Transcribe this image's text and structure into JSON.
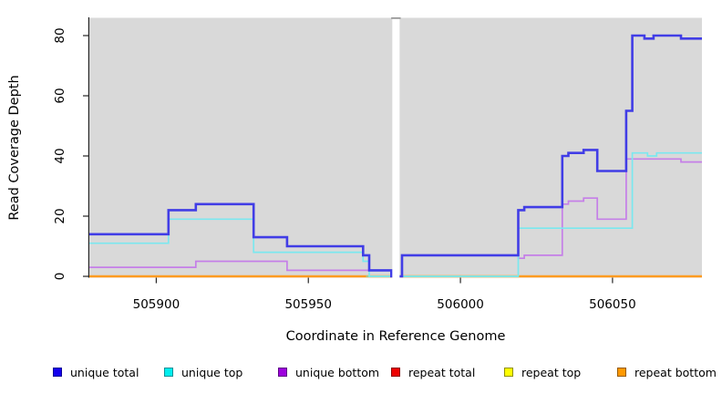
{
  "figure": {
    "x_axis_label": "Coordinate in Reference Genome",
    "y_axis_label": "Read Coverage Depth"
  },
  "chart_data": {
    "type": "line",
    "subtype": "step-coverage",
    "title": "",
    "xlabel": "Coordinate in Reference Genome",
    "ylabel": "Read Coverage Depth",
    "xlim": [
      505878,
      506079.4
    ],
    "ylim": [
      0,
      86
    ],
    "x_ticks": [
      505900,
      505950,
      506000,
      506050
    ],
    "y_ticks": [
      0,
      20,
      40,
      60,
      80
    ],
    "grid": false,
    "plot_bg_color": "#d9d9d9",
    "axis_color": "#262626",
    "masked_region": {
      "from": 505977.6,
      "to": 505980.0,
      "color": "#ffffff",
      "cap_color": "#9a9a9a"
    },
    "zero_overlap_color_note": "pale green along y=0 where unique top overlaps repeat lines at zero",
    "series": [
      {
        "id": "repeat-total",
        "label": "repeat total",
        "color": "#ee0000",
        "line_width": 1.4,
        "in_legend": true,
        "points": [
          [
            505878,
            0
          ]
        ],
        "x_end": 506079.4
      },
      {
        "id": "repeat-top",
        "label": "repeat top",
        "color": "#ffff00",
        "line_width": 1.4,
        "in_legend": true,
        "points": [
          [
            505878,
            0
          ]
        ],
        "x_end": 506079.4
      },
      {
        "id": "repeat-bottom",
        "label": "repeat bottom",
        "color": "#ff9b21",
        "line_width": 2.4,
        "in_legend": true,
        "points": [
          [
            505878,
            0
          ]
        ],
        "x_end": 506079.4
      },
      {
        "id": "unique-top-zero-overlap",
        "label": "",
        "color": "#9ccf9c",
        "line_width": 1.8,
        "in_legend": false,
        "points": [
          [
            505969,
            0
          ]
        ],
        "x_end": 506019
      },
      {
        "id": "unique-bottom",
        "label": "unique bottom",
        "color": "#c57fe8",
        "line_width": 1.7,
        "in_legend": true,
        "points": [
          [
            505878,
            3
          ],
          [
            505913,
            5
          ],
          [
            505943,
            2
          ],
          [
            505977.3,
            0
          ],
          [
            505980.8,
            7
          ],
          [
            506019,
            6
          ],
          [
            506021,
            7
          ],
          [
            506033.5,
            24
          ],
          [
            506035.5,
            25
          ],
          [
            506040.5,
            26
          ],
          [
            506045,
            19
          ],
          [
            506054.5,
            39
          ],
          [
            506072.5,
            38
          ]
        ],
        "x_end": 506079.4
      },
      {
        "id": "unique-top",
        "label": "unique top",
        "color": "#7be8ef",
        "line_width": 1.7,
        "in_legend": true,
        "points": [
          [
            505878,
            11
          ],
          [
            505904,
            19
          ],
          [
            505932,
            8
          ],
          [
            505968,
            5
          ],
          [
            505970,
            0
          ],
          [
            506019,
            16
          ],
          [
            506056.5,
            41
          ],
          [
            506061.5,
            40
          ],
          [
            506064.5,
            41
          ]
        ],
        "x_end": 506079.4
      },
      {
        "id": "unique-total",
        "label": "unique total",
        "color": "#413de6",
        "line_width": 2.6,
        "in_legend": true,
        "points": [
          [
            505878,
            14
          ],
          [
            505904,
            22
          ],
          [
            505913,
            24
          ],
          [
            505932,
            13
          ],
          [
            505943,
            10
          ],
          [
            505968,
            7
          ],
          [
            505970,
            2
          ],
          [
            505977.3,
            0
          ],
          [
            505980.8,
            7
          ],
          [
            506019,
            22
          ],
          [
            506021,
            23
          ],
          [
            506033.5,
            40
          ],
          [
            506035.5,
            41
          ],
          [
            506040.5,
            42
          ],
          [
            506045,
            35
          ],
          [
            506054.5,
            55
          ],
          [
            506056.5,
            80
          ],
          [
            506060.5,
            79
          ],
          [
            506063.5,
            80
          ],
          [
            506072.5,
            79
          ]
        ],
        "x_end": 506079.4
      }
    ],
    "legend": [
      {
        "label": "unique total",
        "fill": "#1400ee",
        "border": "#0d0096"
      },
      {
        "label": "unique top",
        "fill": "#00eeee",
        "border": "#0b8f96"
      },
      {
        "label": "unique bottom",
        "fill": "#9d00dd",
        "border": "#5e0086"
      },
      {
        "label": "repeat total",
        "fill": "#ee0000",
        "border": "#8c0000"
      },
      {
        "label": "repeat top",
        "fill": "#ffff00",
        "border": "#8f8f00"
      },
      {
        "label": "repeat bottom",
        "fill": "#ff9900",
        "border": "#965a00"
      }
    ],
    "legend_position": "bottom"
  }
}
